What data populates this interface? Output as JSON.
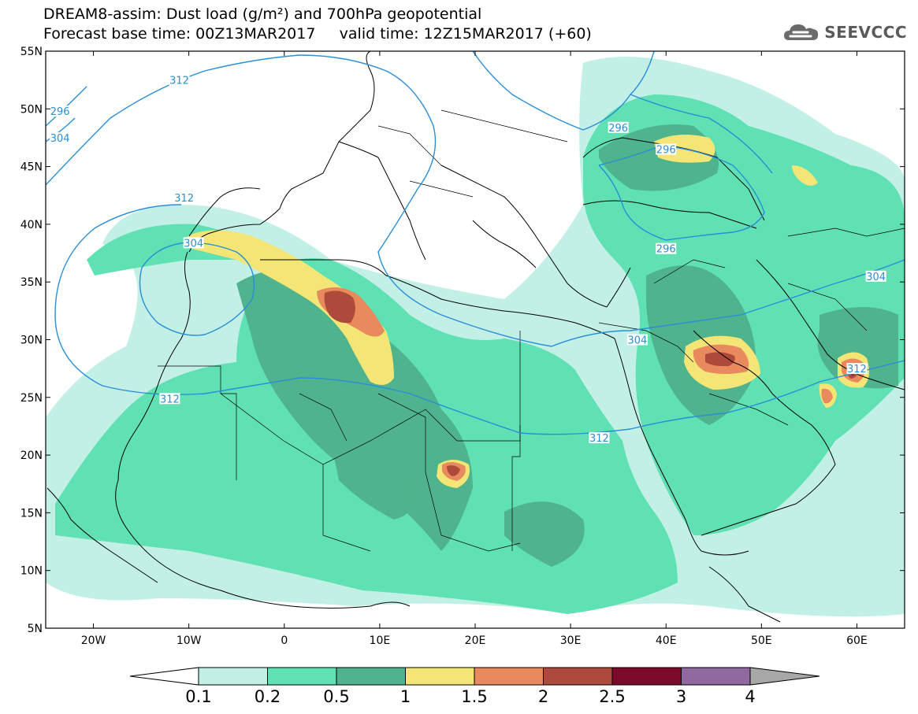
{
  "header": {
    "title_line1": "DREAM8-assim: Dust load (g/m²) and 700hPa geopotential",
    "title_line2": "Forecast base time: 00Z13MAR2017     valid time: 12Z15MAR2017 (+60)",
    "brand": "SEEVCCC"
  },
  "map": {
    "lon_range": [
      -25,
      65
    ],
    "lat_range": [
      5,
      55
    ],
    "lat_ticks": [
      {
        "value": 55,
        "label": "55N"
      },
      {
        "value": 50,
        "label": "50N"
      },
      {
        "value": 45,
        "label": "45N"
      },
      {
        "value": 40,
        "label": "40N"
      },
      {
        "value": 35,
        "label": "35N"
      },
      {
        "value": 30,
        "label": "30N"
      },
      {
        "value": 25,
        "label": "25N"
      },
      {
        "value": 20,
        "label": "20N"
      },
      {
        "value": 15,
        "label": "15N"
      },
      {
        "value": 10,
        "label": "10N"
      },
      {
        "value": 5,
        "label": "5N"
      }
    ],
    "lon_ticks": [
      {
        "value": -20,
        "label": "20W"
      },
      {
        "value": -10,
        "label": "10W"
      },
      {
        "value": 0,
        "label": "0"
      },
      {
        "value": 10,
        "label": "10E"
      },
      {
        "value": 20,
        "label": "20E"
      },
      {
        "value": 30,
        "label": "30E"
      },
      {
        "value": 40,
        "label": "40E"
      },
      {
        "value": 50,
        "label": "50E"
      },
      {
        "value": 60,
        "label": "60E"
      }
    ],
    "contour_color": "#2a8fd6",
    "contour_labels": [
      {
        "text": "312",
        "lon": -11,
        "lat": 52.5
      },
      {
        "text": "296",
        "lon": -23.5,
        "lat": 49.8
      },
      {
        "text": "304",
        "lon": -23.5,
        "lat": 47.5
      },
      {
        "text": "312",
        "lon": -10.5,
        "lat": 42.3
      },
      {
        "text": "304",
        "lon": -9.5,
        "lat": 38.4
      },
      {
        "text": "312",
        "lon": -12,
        "lat": 24.9
      },
      {
        "text": "296",
        "lon": 35,
        "lat": 48.4
      },
      {
        "text": "296",
        "lon": 40,
        "lat": 46.5
      },
      {
        "text": "296",
        "lon": 40,
        "lat": 37.9
      },
      {
        "text": "304",
        "lon": 62,
        "lat": 35.5
      },
      {
        "text": "304",
        "lon": 37,
        "lat": 30
      },
      {
        "text": "312",
        "lon": 60,
        "lat": 27.5
      },
      {
        "text": "312",
        "lon": 33,
        "lat": 21.5
      }
    ]
  },
  "colorbar": {
    "colors": [
      "#c3f0e6",
      "#5fe1b4",
      "#4fb48d",
      "#f3e676",
      "#e88a5e",
      "#ad4a3b",
      "#7d0a2b",
      "#8f69a0"
    ],
    "under_color": "#ffffff",
    "over_color": "#a8a8a8",
    "labels": [
      "0.1",
      "0.2",
      "0.5",
      "1",
      "1.5",
      "2",
      "2.5",
      "3",
      "4"
    ]
  }
}
